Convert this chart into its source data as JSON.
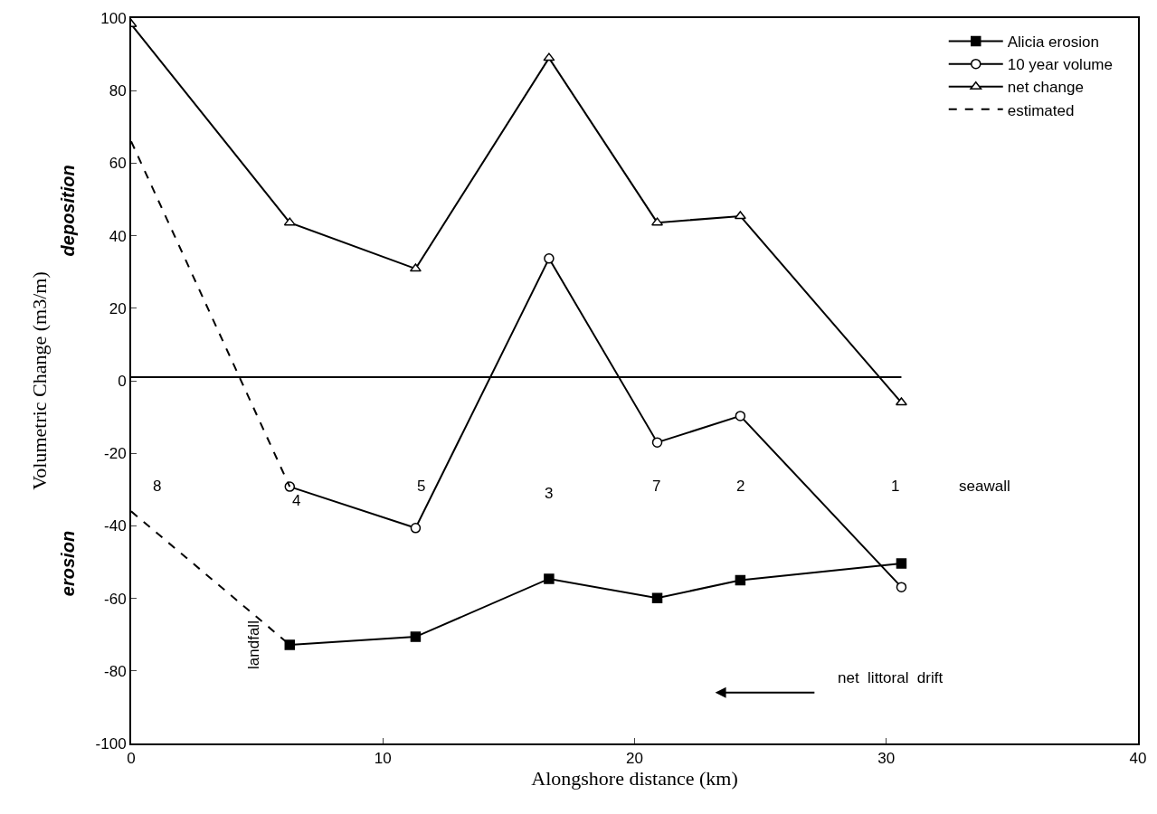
{
  "chart_data": {
    "type": "line",
    "xlabel": "Alongshore distance (km)",
    "ylabel": "Volumetric Change (m3/m)",
    "xlim": [
      0,
      40
    ],
    "xticks": [
      0,
      10,
      20,
      30,
      40
    ],
    "ylim": [
      -100,
      100
    ],
    "yticks": [
      -100,
      -80,
      -60,
      -40,
      -20,
      0,
      20,
      40,
      60,
      80,
      100
    ],
    "legend": "top right",
    "series": [
      {
        "name": "Alicia erosion",
        "color": "#000000",
        "marker": "square",
        "line_style": "solid",
        "x": [
          6.3,
          11.3,
          16.6,
          20.9,
          24.2,
          30.6
        ],
        "values": [
          -72.8,
          -70.6,
          -54.6,
          -59.9,
          -55,
          -50.4
        ]
      },
      {
        "name": "10 year volume",
        "color": "#000000",
        "marker": "circle",
        "line_style": "solid",
        "x": [
          6.3,
          11.3,
          16.6,
          20.9,
          24.2,
          30.6
        ],
        "values": [
          -29.2,
          -40.6,
          33.7,
          -17,
          -9.7,
          -56.9
        ]
      },
      {
        "name": "net change",
        "color": "#000000",
        "marker": "triangle",
        "line_style": "solid",
        "x": [
          0,
          6.3,
          11.3,
          16.6,
          20.9,
          24.2,
          30.6
        ],
        "values": [
          98.3,
          43.6,
          30.9,
          89,
          43.6,
          45.4,
          -6
        ]
      },
      {
        "name": "estimated",
        "color": "#000000",
        "marker": "none",
        "line_style": "dashed",
        "x": [
          0,
          6.3
        ],
        "values": [
          66,
          -29.2
        ]
      },
      {
        "color": "#000000",
        "marker": "none",
        "line_style": "dashed",
        "x": [
          0,
          6.3
        ],
        "values": [
          -36,
          -72.8
        ]
      },
      {
        "color": "#000000",
        "marker": "none",
        "line_style": "solid",
        "x": [
          0,
          30.6
        ],
        "values": [
          1,
          1
        ]
      }
    ],
    "annotations": [
      "deposition",
      "erosion",
      "8",
      "4",
      "5",
      "3",
      "7",
      "2",
      "1",
      "seawall",
      "landfall",
      "net  littoral  drift"
    ]
  }
}
